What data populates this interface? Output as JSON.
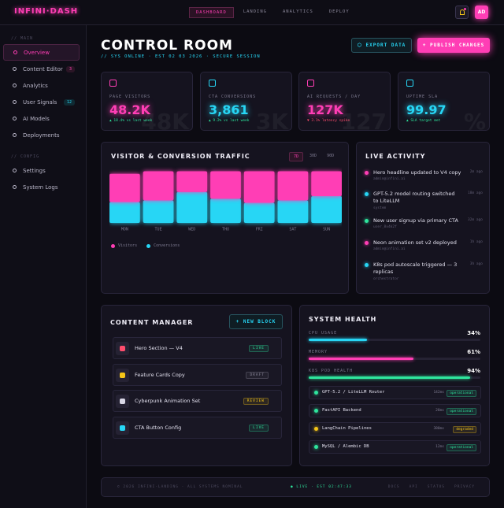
{
  "header": {
    "logo": "INFINI·DASH",
    "nav": [
      "DASHBOARD",
      "LANDING",
      "ANALYTICS",
      "DEPLOY"
    ],
    "avatar": "AD"
  },
  "sidebar": {
    "sections": [
      {
        "title": "// MAIN",
        "items": [
          {
            "label": "Overview"
          },
          {
            "label": "Content Editor",
            "badge": 3
          },
          {
            "label": "Analytics"
          },
          {
            "label": "User Signals",
            "badge": 12
          },
          {
            "label": "AI Models"
          },
          {
            "label": "Deployments"
          }
        ]
      },
      {
        "title": "// CONFIG",
        "items": [
          {
            "label": "Settings"
          },
          {
            "label": "System Logs"
          }
        ]
      }
    ]
  },
  "page": {
    "title": "CONTROL ROOM",
    "subtitle": "// SYS ONLINE · EST 02 03 2026 · SECURE SESSION",
    "actions": [
      "⬡ EXPORT DATA",
      "+ PUBLISH CHANGES"
    ]
  },
  "kpis": [
    {
      "label": "PAGE VISITORS",
      "value": "48.2K",
      "delta": "▲ 18.4% vs last week",
      "watermark": "48K",
      "color": "#ff3eb5",
      "delta_color": "#2ee59d"
    },
    {
      "label": "CTA CONVERSIONS",
      "value": "3,861",
      "delta": "▲ 9.2% vs last week",
      "watermark": "3K",
      "color": "#27d6f5",
      "delta_color": "#2ee59d"
    },
    {
      "label": "AI REQUESTS / DAY",
      "value": "127K",
      "delta": "▼ 3.1% latency spike",
      "watermark": "127",
      "color": "#ff3eb5",
      "delta_color": "#ff4d6d"
    },
    {
      "label": "UPTIME SLA",
      "value": "99.97",
      "delta": "▲ SLA target met",
      "watermark": "%",
      "color": "#27d6f5",
      "delta_color": "#2ee59d"
    }
  ],
  "traffic": {
    "title": "VISITOR & CONVERSION TRAFFIC",
    "ranges": [
      "7D",
      "30D",
      "90D"
    ],
    "chart_data": {
      "type": "bar",
      "stacked": true,
      "categories": [
        "MON",
        "TUE",
        "WED",
        "THU",
        "FRI",
        "SAT",
        "SUN"
      ],
      "series": [
        {
          "name": "Conversions",
          "color": "#27d6f5",
          "values": [
            25,
            27,
            37,
            29,
            24,
            27,
            32
          ]
        },
        {
          "name": "Visitors",
          "color": "#ff3eb5",
          "values": [
            36,
            37,
            27,
            35,
            40,
            37,
            32
          ]
        }
      ]
    }
  },
  "activity": {
    "title": "LIVE ACTIVITY",
    "items": [
      {
        "text": "Hero headline updated to V4 copy",
        "user": "admin@infini.ai",
        "time": "2m ago",
        "color": "#ff3eb5"
      },
      {
        "text": "GPT-5.2 model routing switched to LiteLLM",
        "user": "system",
        "time": "18m ago",
        "color": "#27d6f5"
      },
      {
        "text": "New user signup via primary CTA",
        "user": "user_8x4k2f",
        "time": "32m ago",
        "color": "#2ee59d"
      },
      {
        "text": "Neon animation set v2 deployed",
        "user": "admin@infini.ai",
        "time": "1h ago",
        "color": "#ff3eb5"
      },
      {
        "text": "K8s pod autoscale triggered — 3 replicas",
        "user": "orchestrator",
        "time": "3h ago",
        "color": "#27d6f5"
      }
    ]
  },
  "content": {
    "title": "CONTENT MANAGER",
    "action": "+ NEW BLOCK",
    "items": [
      {
        "name": "Hero Section — V4",
        "status": "LIVE",
        "color": "#2ee59d"
      },
      {
        "name": "Feature Cards Copy",
        "status": "DRAFT",
        "color": "#8a8799"
      },
      {
        "name": "Cyberpunk Animation Set",
        "status": "REVIEW",
        "color": "#f5c518"
      },
      {
        "name": "CTA Button Config",
        "status": "LIVE",
        "color": "#2ee59d"
      }
    ]
  },
  "health": {
    "title": "SYSTEM HEALTH",
    "metrics": [
      {
        "label": "CPU USAGE",
        "value": {
          "value": 34,
          "label": "34%"
        },
        "color": "#27d6f5"
      },
      {
        "label": "MEMORY",
        "value": {
          "value": 61,
          "label": "61%"
        },
        "color": "#ff3eb5"
      },
      {
        "label": "K8S POD HEALTH",
        "value": {
          "value": 94,
          "label": "94%"
        },
        "color": "#2ee59d"
      }
    ],
    "services": [
      {
        "name": "GPT-5.2 / LiteLLM Router",
        "latency": "142ms",
        "status": "operational",
        "color": "#2ee59d"
      },
      {
        "name": "FastAPI Backend",
        "latency": "28ms",
        "status": "operational",
        "color": "#2ee59d"
      },
      {
        "name": "LangChain Pipelines",
        "latency": "380ms",
        "status": "degraded",
        "color": "#f5c518"
      },
      {
        "name": "MySQL / Alembic DB",
        "latency": "12ms",
        "status": "operational",
        "color": "#2ee59d"
      }
    ]
  },
  "footer": {
    "left": "© 2026 INFINI-LANDING · ALL SYSTEMS NOMINAL",
    "status": "● LIVE · EST 02:47:33",
    "links": [
      "DOCS",
      "API",
      "STATUS",
      "PRIVACY"
    ]
  }
}
